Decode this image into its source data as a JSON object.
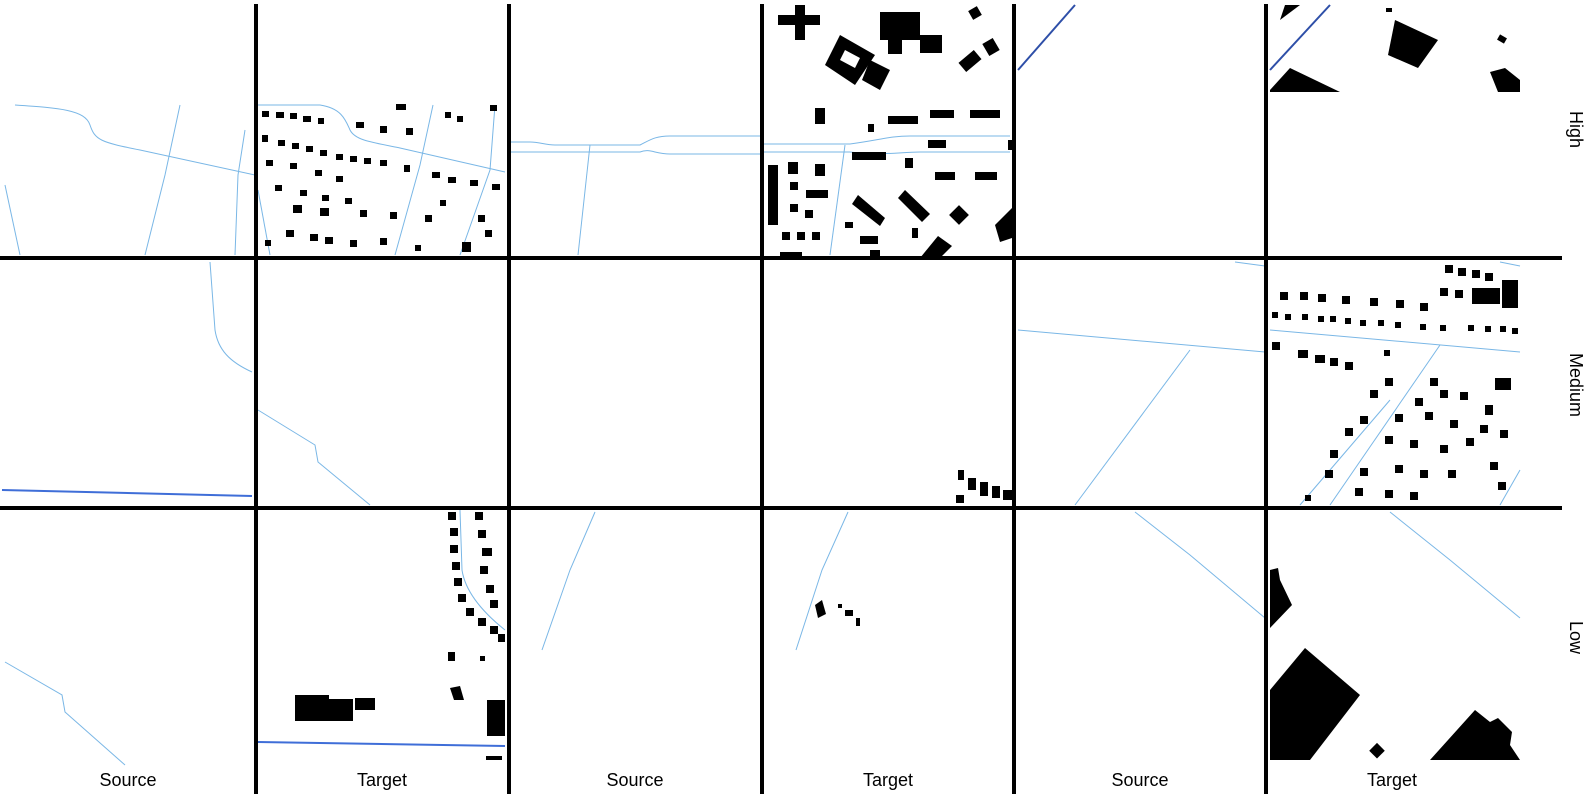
{
  "column_labels": [
    "Source",
    "Target",
    "Source",
    "Target",
    "Source",
    "Target"
  ],
  "row_labels": [
    "High",
    "Medium",
    "Low"
  ],
  "colors": {
    "road": "#7ab7e6",
    "major_road": "#2e4fa8",
    "building": "#000000",
    "grid": "#000000"
  }
}
